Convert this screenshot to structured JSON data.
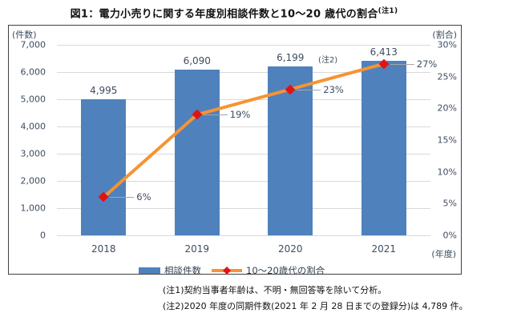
{
  "title": {
    "text": "図1：電力小売りに関する年度別相談件数と10〜20 歳代の割合",
    "superscript": "(注1)"
  },
  "chart_data": {
    "type": "bar+line combo",
    "categories": [
      "2018",
      "2019",
      "2020",
      "2021"
    ],
    "series": [
      {
        "name": "相談件数",
        "type": "bar",
        "axis": "left",
        "values": [
          4995,
          6090,
          6199,
          6413
        ],
        "labels": [
          "4,995",
          "6,090",
          "6,199",
          "6,413"
        ],
        "label_notes": [
          "",
          "",
          "(注2)",
          ""
        ],
        "color": "#4f81bd"
      },
      {
        "name": "10〜20歳代の割合",
        "type": "line",
        "axis": "right",
        "values": [
          6,
          19,
          23,
          27
        ],
        "labels": [
          "6%",
          "19%",
          "23%",
          "27%"
        ],
        "color": "#f79333",
        "marker": "diamond",
        "marker_color": "#e31212"
      }
    ],
    "left_axis": {
      "title": "(件数)",
      "min": 0,
      "max": 7000,
      "tick_step": 1000,
      "tick_labels": [
        "0",
        "1,000",
        "2,000",
        "3,000",
        "4,000",
        "5,000",
        "6,000",
        "7,000"
      ]
    },
    "right_axis": {
      "title": "(割合)",
      "min": 0,
      "max": 30,
      "tick_step": 5,
      "tick_labels": [
        "0%",
        "5%",
        "10%",
        "15%",
        "20%",
        "25%",
        "30%"
      ]
    },
    "x_axis_unit": "(年度)",
    "grid": "horizontal, every 1,000 on left axis",
    "legend_position": "bottom"
  },
  "legend": {
    "items": [
      {
        "label": "相談件数",
        "swatch": "bar"
      },
      {
        "label": "10〜20歳代の割合",
        "swatch": "line-diamond"
      }
    ]
  },
  "notes": [
    "(注1)契約当事者年齢は、不明・無回答等を除いて分析。",
    "(注2)2020 年度の同期件数(2021 年 2 月 28 日までの登録分)は 4,789 件。"
  ],
  "colors": {
    "bar": "#4f81bd",
    "line": "#f79333",
    "marker": "#e31212",
    "gridline": "#d9d9d9",
    "leader": "#a6a6a6",
    "axis_text": "#3e4c60",
    "frame_border": "#404040"
  }
}
